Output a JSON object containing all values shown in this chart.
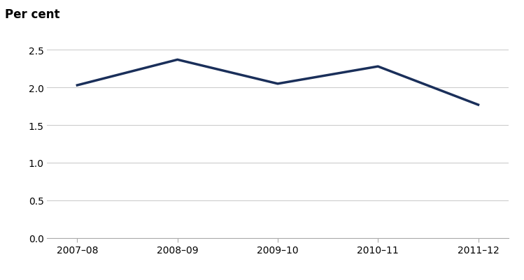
{
  "x_labels": [
    "2007–08",
    "2008–09",
    "2009–10",
    "2010–11",
    "2011–12"
  ],
  "y_values": [
    2.03,
    2.37,
    2.05,
    2.28,
    1.77
  ],
  "line_color": "#1a2f5a",
  "line_width": 2.5,
  "ylabel": "Per cent",
  "ylim": [
    0.0,
    2.5
  ],
  "yticks": [
    0.0,
    0.5,
    1.0,
    1.5,
    2.0,
    2.5
  ],
  "background_color": "#ffffff",
  "grid_color": "#cccccc",
  "ylabel_fontsize": 12,
  "tick_fontsize": 10,
  "label_color": "#000000"
}
